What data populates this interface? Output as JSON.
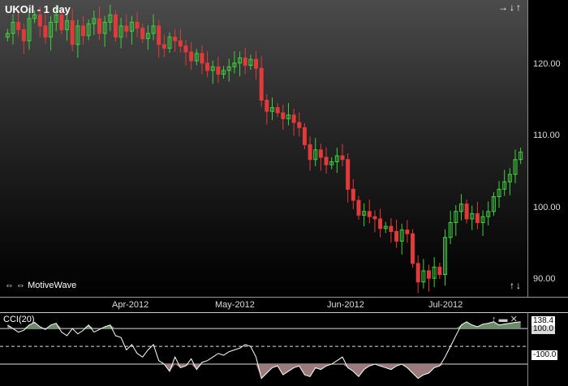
{
  "title": "UKOil - 1 day",
  "brand": "MotiveWave",
  "icons": {
    "top_right": "→↓↑",
    "bottom_left": "⇔ ⇔",
    "bottom_right": "↑↓",
    "cci_controls": "↑ ▬ ✕"
  },
  "y_axis": {
    "ticks": [
      "120.00",
      "110.00",
      "100.00",
      "90.00"
    ]
  },
  "x_axis": {
    "ticks": [
      "Apr-2012",
      "May-2012",
      "Jun-2012",
      "Jul-2012"
    ]
  },
  "cci": {
    "title": "CCI(20)",
    "upper_value": "138.4",
    "upper_label": "100.0",
    "lower_label": "-100.0"
  },
  "colors": {
    "up": "#3fd13f",
    "down": "#e03a3a",
    "cci_line": "#ffffff",
    "cci_fill": "#9a7a7a"
  },
  "chart_data": {
    "type": "candlestick",
    "ylim": [
      88,
      128
    ],
    "series_close": [
      123.5,
      125.0,
      124.0,
      122.5,
      125.5,
      126.0,
      124.5,
      123.0,
      125.0,
      126.0,
      124.0,
      125.2,
      122.0,
      124.5,
      123.2,
      124.8,
      125.5,
      123.5,
      125.0,
      126.0,
      123.0,
      124.5,
      123.8,
      125.0,
      124.2,
      122.8,
      123.5,
      124.5,
      122.0,
      121.5,
      123.0,
      122.5,
      121.8,
      121.0,
      119.8,
      120.8,
      119.5,
      118.5,
      119.0,
      118.0,
      118.5,
      119.0,
      119.5,
      120.2,
      119.2,
      120.0,
      118.8,
      114.5,
      113.0,
      113.5,
      112.8,
      112.0,
      112.5,
      111.5,
      110.8,
      108.5,
      106.5,
      107.8,
      106.8,
      105.8,
      106.2,
      107.0,
      106.5,
      102.5,
      101.0,
      99.0,
      99.5,
      98.8,
      98.5,
      97.2,
      97.5,
      96.8,
      95.5,
      97.0,
      96.5,
      92.5,
      90.0,
      91.5,
      90.5,
      92.0,
      91.0,
      96.0,
      98.0,
      99.5,
      100.5,
      98.5,
      99.2,
      98.0,
      98.8,
      99.5,
      101.5,
      102.5,
      103.5,
      104.5,
      106.5,
      107.5
    ],
    "cci_values": [
      120,
      100,
      80,
      90,
      120,
      135,
      110,
      95,
      120,
      130,
      80,
      60,
      100,
      70,
      90,
      120,
      80,
      95,
      110,
      120,
      60,
      50,
      -20,
      10,
      -40,
      -60,
      -20,
      10,
      -80,
      -100,
      -140,
      -60,
      -120,
      -110,
      -70,
      -130,
      -90,
      -80,
      -60,
      -40,
      -50,
      -30,
      -20,
      -10,
      10,
      0,
      -60,
      -180,
      -150,
      -120,
      -110,
      -160,
      -140,
      -120,
      -110,
      -160,
      -170,
      -120,
      -130,
      -110,
      -100,
      -80,
      -60,
      -120,
      -140,
      -170,
      -130,
      -110,
      -100,
      -110,
      -120,
      -130,
      -110,
      -100,
      -120,
      -150,
      -180,
      -160,
      -150,
      -120,
      -110,
      -60,
      0,
      60,
      120,
      138,
      120,
      110,
      125,
      130,
      138,
      120,
      125,
      130,
      135,
      138
    ]
  }
}
